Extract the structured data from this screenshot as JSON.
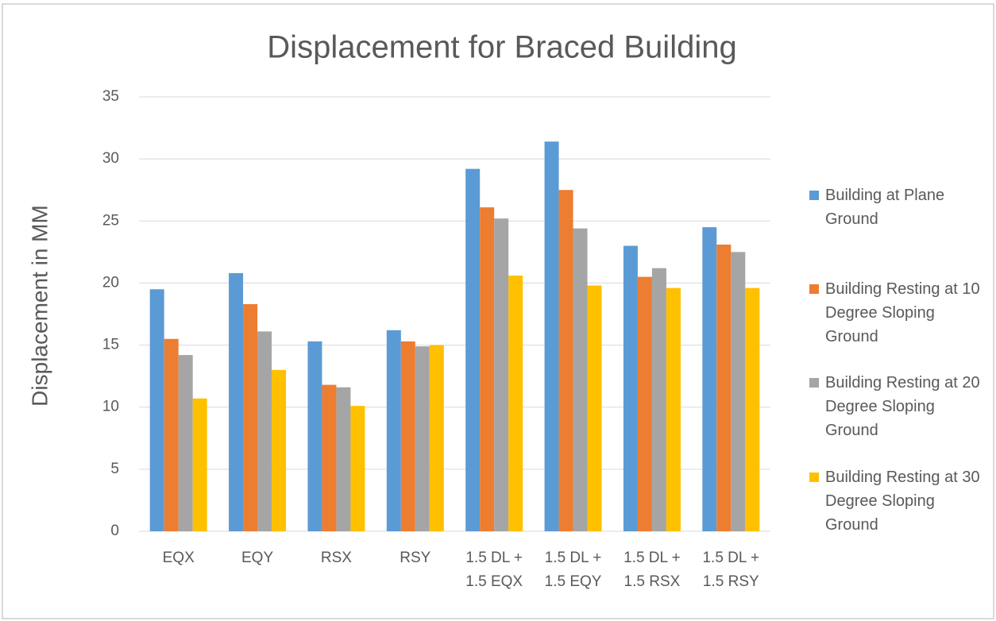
{
  "chart_data": {
    "type": "bar",
    "title": "Displacement for Braced Building",
    "y_label": "Displacement in MM",
    "categories": [
      "EQX",
      "EQY",
      "RSX",
      "RSY",
      "1.5 DL + 1.5 EQX",
      "1.5 DL + 1.5 EQY",
      "1.5 DL + 1.5 RSX",
      "1.5 DL + 1.5 RSY"
    ],
    "series": [
      {
        "name": "Building at Plane Ground",
        "color": "#5b9bd5",
        "values": [
          19.5,
          20.8,
          15.3,
          16.2,
          29.2,
          31.4,
          23.0,
          24.5
        ]
      },
      {
        "name": "Building Resting at 10 Degree Sloping Ground",
        "color": "#ed7d31",
        "values": [
          15.5,
          18.3,
          11.8,
          15.3,
          26.1,
          27.5,
          20.5,
          23.1
        ]
      },
      {
        "name": "Building Resting at 20 Degree Sloping Ground",
        "color": "#a5a5a5",
        "values": [
          14.2,
          16.1,
          11.6,
          14.9,
          25.2,
          24.4,
          21.2,
          22.5
        ]
      },
      {
        "name": "Building Resting at 30 Degree Sloping Ground",
        "color": "#ffc000",
        "values": [
          10.7,
          13.0,
          10.1,
          15.0,
          20.6,
          19.8,
          19.6,
          19.6
        ]
      }
    ],
    "ylim": [
      0,
      35
    ],
    "yticks": [
      0,
      5,
      10,
      15,
      20,
      25,
      30,
      35
    ],
    "grid": true,
    "legend": "right"
  }
}
